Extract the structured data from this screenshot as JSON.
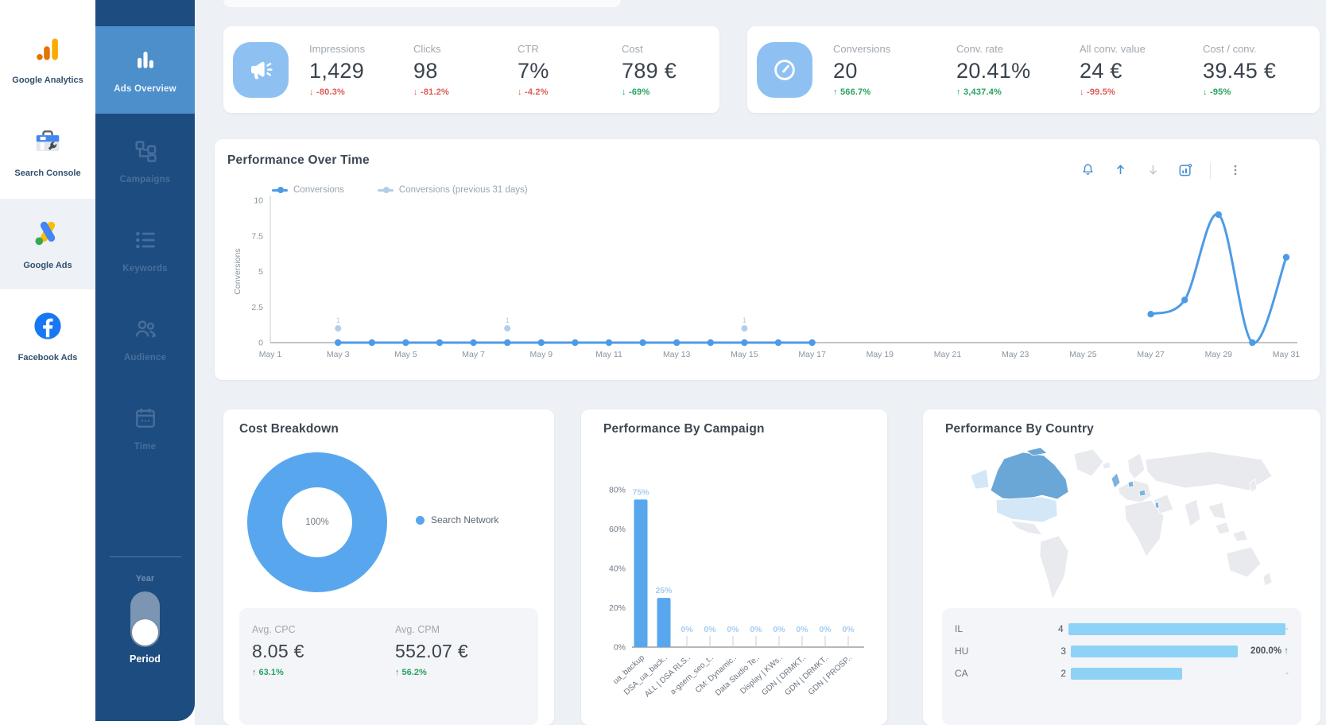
{
  "page": {
    "background": "#edf0f4",
    "accent_blue": "#4d9be6"
  },
  "sidebar_platforms": {
    "items": [
      {
        "label": "Google Analytics",
        "active": false
      },
      {
        "label": "Search Console",
        "active": false
      },
      {
        "label": "Google Ads",
        "active": true
      },
      {
        "label": "Facebook Ads",
        "active": false
      }
    ]
  },
  "sidebar_nav": {
    "items": [
      {
        "label": "Ads Overview",
        "active": true
      },
      {
        "label": "Campaigns",
        "active": false
      },
      {
        "label": "Keywords",
        "active": false
      },
      {
        "label": "Audience",
        "active": false
      },
      {
        "label": "Time",
        "active": false
      }
    ],
    "period_toggle": {
      "top_label": "Year",
      "bottom_label": "Period",
      "selected": "Period"
    }
  },
  "kpi_cards": [
    {
      "icon": "megaphone",
      "icon_bg": "#8ec1f2",
      "metrics": [
        {
          "label": "Impressions",
          "value": "1,429",
          "delta": "-80.3%",
          "arrow": "down",
          "color": "#e05a56"
        },
        {
          "label": "Clicks",
          "value": "98",
          "delta": "-81.2%",
          "arrow": "down",
          "color": "#e05a56"
        },
        {
          "label": "CTR",
          "value": "7%",
          "delta": "-4.2%",
          "arrow": "down",
          "color": "#e05a56"
        },
        {
          "label": "Cost",
          "value": "789 €",
          "delta": "-69%",
          "arrow": "down",
          "color": "#27a35f"
        }
      ]
    },
    {
      "icon": "gauge",
      "icon_bg": "#8ec1f2",
      "metrics": [
        {
          "label": "Conversions",
          "value": "20",
          "delta": "566.7%",
          "arrow": "up",
          "color": "#27a35f"
        },
        {
          "label": "Conv. rate",
          "value": "20.41%",
          "delta": "3,437.4%",
          "arrow": "up",
          "color": "#27a35f"
        },
        {
          "label": "All conv. value",
          "value": "24 €",
          "delta": "-99.5%",
          "arrow": "down",
          "color": "#e05a56"
        },
        {
          "label": "Cost / conv.",
          "value": "39.45 €",
          "delta": "-95%",
          "arrow": "down",
          "color": "#27a35f"
        }
      ]
    }
  ],
  "chart_data": [
    {
      "id": "performance_over_time",
      "type": "line",
      "title": "Performance Over Time",
      "ylabel": "Conversions",
      "ylim": [
        0,
        10
      ],
      "yticks": [
        0,
        2.5,
        5,
        7.5,
        10
      ],
      "xtick_days": [
        1,
        3,
        5,
        7,
        9,
        11,
        13,
        15,
        17,
        19,
        21,
        23,
        25,
        27,
        29,
        31
      ],
      "xtick_labels": [
        "May 1",
        "May 3",
        "May 5",
        "May 7",
        "May 9",
        "May 11",
        "May 13",
        "May 15",
        "May 17",
        "May 19",
        "May 21",
        "May 23",
        "May 25",
        "May 27",
        "May 29",
        "May 31"
      ],
      "legend_position": "top-left",
      "grid": false,
      "series": [
        {
          "name": "Conversions",
          "color": "#4d9be6",
          "segments": [
            [
              [
                3,
                0
              ],
              [
                4,
                0
              ],
              [
                5,
                0
              ],
              [
                6,
                0
              ],
              [
                7,
                0
              ],
              [
                8,
                0
              ],
              [
                9,
                0
              ],
              [
                10,
                0
              ],
              [
                11,
                0
              ],
              [
                12,
                0
              ],
              [
                13,
                0
              ],
              [
                14,
                0
              ],
              [
                15,
                0
              ],
              [
                16,
                0
              ],
              [
                17,
                0
              ]
            ],
            [
              [
                27,
                2
              ],
              [
                28,
                3
              ],
              [
                29,
                9
              ],
              [
                30,
                0
              ],
              [
                31,
                6
              ]
            ]
          ]
        },
        {
          "name": "Conversions (previous 31 days)",
          "color": "#b3cdeb",
          "segments": [
            [
              [
                3,
                1
              ]
            ],
            [
              [
                8,
                1
              ]
            ],
            [
              [
                15,
                1
              ]
            ]
          ],
          "point_label": "1"
        }
      ]
    },
    {
      "id": "cost_breakdown",
      "type": "donut",
      "title": "Cost Breakdown",
      "center_label": "100%",
      "slices": [
        {
          "label": "Search Network",
          "value": 100,
          "color": "#58a7ee"
        }
      ],
      "stats": [
        {
          "label": "Avg. CPC",
          "value": "8.05 €",
          "delta": "63.1%",
          "arrow": "up",
          "color": "#27a35f"
        },
        {
          "label": "Avg. CPM",
          "value": "552.07 €",
          "delta": "56.2%",
          "arrow": "up",
          "color": "#27a35f"
        }
      ]
    },
    {
      "id": "performance_by_campaign",
      "type": "bar",
      "title": "Performance By Campaign",
      "categories": [
        "ua_backup",
        "DSA_ua_back..",
        "ALL | DSA RLS..",
        "a-gsem_seo_t..",
        "CM: Dynamic..",
        "Data Studio Te..",
        "Display | KWs..",
        "GDN | DRMKT..",
        "GDN | DRMKT..",
        "GDN | PROSP.."
      ],
      "values": [
        75,
        25,
        0,
        0,
        0,
        0,
        0,
        0,
        0,
        0
      ],
      "bar_labels": [
        "75%",
        "25%",
        "0%",
        "0%",
        "0%",
        "0%",
        "0%",
        "0%",
        "0%",
        "0%"
      ],
      "ylim": [
        0,
        80
      ],
      "ytick_labels": [
        "0%",
        "20%",
        "40%",
        "60%",
        "80%"
      ],
      "bar_color": "#58a7ee",
      "label_color": "#a5cdf1"
    },
    {
      "id": "performance_by_country",
      "type": "table",
      "title": "Performance By Country",
      "map": {
        "base_color": "#e8eaee",
        "highlight_primary": "#6ba7d6",
        "highlight_secondary": "#d3e7f6",
        "highlight_small": "#7fb2dc"
      },
      "rows": [
        {
          "code": "IL",
          "value": "4",
          "bar_fraction": 1.0,
          "change": "-",
          "change_arrow": null,
          "bar_color": "#8ed2f6"
        },
        {
          "code": "HU",
          "value": "3",
          "bar_fraction": 0.75,
          "change": "200.0%",
          "change_arrow": "up",
          "bar_color": "#8ed2f6"
        },
        {
          "code": "CA",
          "value": "2",
          "bar_fraction": 0.5,
          "change": "-",
          "change_arrow": null,
          "bar_color": "#8ed2f6"
        }
      ]
    }
  ]
}
